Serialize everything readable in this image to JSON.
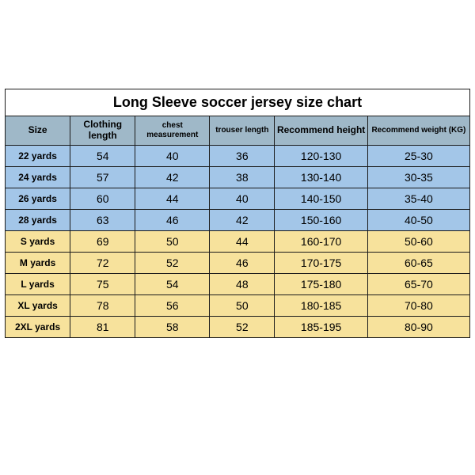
{
  "title": "Long Sleeve soccer jersey size chart",
  "colors": {
    "header_bg": "#9fb8c8",
    "group_a_bg": "#a3c6e8",
    "group_b_bg": "#f7e29c",
    "border": "#1a1a1a",
    "title_bg": "#ffffff",
    "page_bg": "#ffffff",
    "text": "#000000"
  },
  "columns": [
    {
      "label": "Size",
      "widthPct": 14,
      "small": false
    },
    {
      "label": "Clothing length",
      "widthPct": 14,
      "small": false
    },
    {
      "label": "chest measurement",
      "widthPct": 16,
      "small": true
    },
    {
      "label": "trouser length",
      "widthPct": 14,
      "small": true
    },
    {
      "label": "Recommend height",
      "widthPct": 20,
      "small": false
    },
    {
      "label": "Recommend weight (KG)",
      "widthPct": 22,
      "small": true
    }
  ],
  "rows": [
    {
      "group": "a",
      "cells": [
        "22 yards",
        "54",
        "40",
        "36",
        "120-130",
        "25-30"
      ]
    },
    {
      "group": "a",
      "cells": [
        "24 yards",
        "57",
        "42",
        "38",
        "130-140",
        "30-35"
      ]
    },
    {
      "group": "a",
      "cells": [
        "26 yards",
        "60",
        "44",
        "40",
        "140-150",
        "35-40"
      ]
    },
    {
      "group": "a",
      "cells": [
        "28 yards",
        "63",
        "46",
        "42",
        "150-160",
        "40-50"
      ]
    },
    {
      "group": "b",
      "cells": [
        "S yards",
        "69",
        "50",
        "44",
        "160-170",
        "50-60"
      ]
    },
    {
      "group": "b",
      "cells": [
        "M yards",
        "72",
        "52",
        "46",
        "170-175",
        "60-65"
      ]
    },
    {
      "group": "b",
      "cells": [
        "L yards",
        "75",
        "54",
        "48",
        "175-180",
        "65-70"
      ]
    },
    {
      "group": "b",
      "cells": [
        "XL yards",
        "78",
        "56",
        "50",
        "180-185",
        "70-80"
      ]
    },
    {
      "group": "b",
      "cells": [
        "2XL yards",
        "81",
        "58",
        "52",
        "185-195",
        "80-90"
      ]
    }
  ]
}
